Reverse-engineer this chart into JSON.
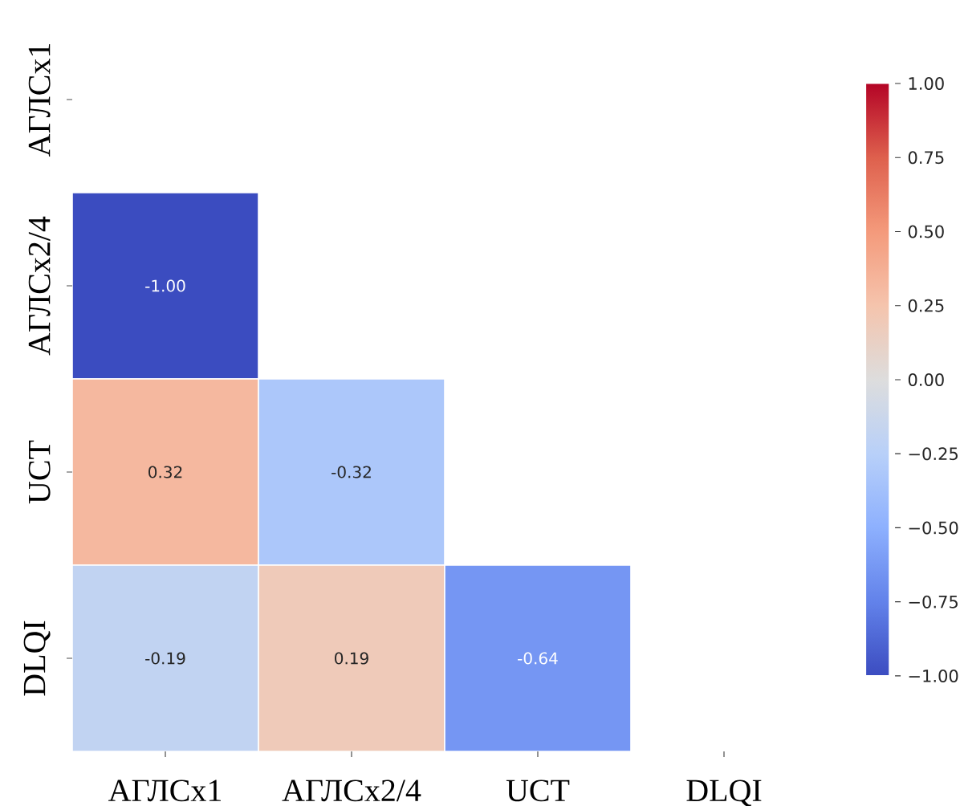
{
  "chart_data": {
    "type": "heatmap",
    "categories": [
      "АГЛСх1",
      "АГЛСх2/4",
      "UCT",
      "DLQI"
    ],
    "y_categories": [
      "АГЛСх1",
      "АГЛСх2/4",
      "UCT",
      "DLQI"
    ],
    "cells": [
      [
        null,
        null,
        null,
        null
      ],
      [
        -1.0,
        null,
        null,
        null
      ],
      [
        0.32,
        -0.32,
        null,
        null
      ],
      [
        -0.19,
        0.19,
        -0.64,
        null
      ]
    ],
    "cell_labels": [
      [
        null,
        null,
        null,
        null
      ],
      [
        "-1.00",
        null,
        null,
        null
      ],
      [
        "0.32",
        "-0.32",
        null,
        null
      ],
      [
        "-0.19",
        "0.19",
        "-0.64",
        null
      ]
    ],
    "clim": [
      -1,
      1
    ],
    "cticks": [
      {
        "value": -1,
        "label": "−1.00"
      },
      {
        "value": -0.75,
        "label": "−0.75"
      },
      {
        "value": -0.5,
        "label": "−0.50"
      },
      {
        "value": -0.25,
        "label": "−0.25"
      },
      {
        "value": 0,
        "label": "0.00"
      },
      {
        "value": 0.25,
        "label": "0.25"
      },
      {
        "value": 0.5,
        "label": "0.50"
      },
      {
        "value": 0.75,
        "label": "0.75"
      },
      {
        "value": 1,
        "label": "1.00"
      }
    ]
  }
}
